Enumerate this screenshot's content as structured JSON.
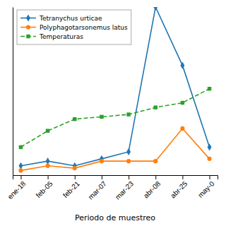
{
  "chart_data": {
    "type": "line",
    "categories": [
      "ene-18",
      "feb-05",
      "feb-21",
      "mar-07",
      "mar-23",
      "abr-08",
      "abr-25",
      "may-0"
    ],
    "series": [
      {
        "name": "Tetranychus urticae",
        "values": [
          2,
          4,
          2,
          5,
          8,
          70,
          45,
          10
        ],
        "marker": "diamond",
        "line_style": "solid"
      },
      {
        "name": "Polyphagotarsonemus latus",
        "values": [
          0,
          2,
          1,
          4,
          4,
          4,
          18,
          5
        ],
        "marker": "circle",
        "line_style": "solid"
      },
      {
        "name": "Temperaturas",
        "values": [
          10,
          17,
          22,
          23,
          24,
          27,
          29,
          35
        ],
        "marker": "square",
        "line_style": "dashed"
      }
    ],
    "xlabel": "Periodo de muestreo",
    "ylim": [
      -2,
      70
    ],
    "tick_labels": "x",
    "legend": "upper left"
  }
}
